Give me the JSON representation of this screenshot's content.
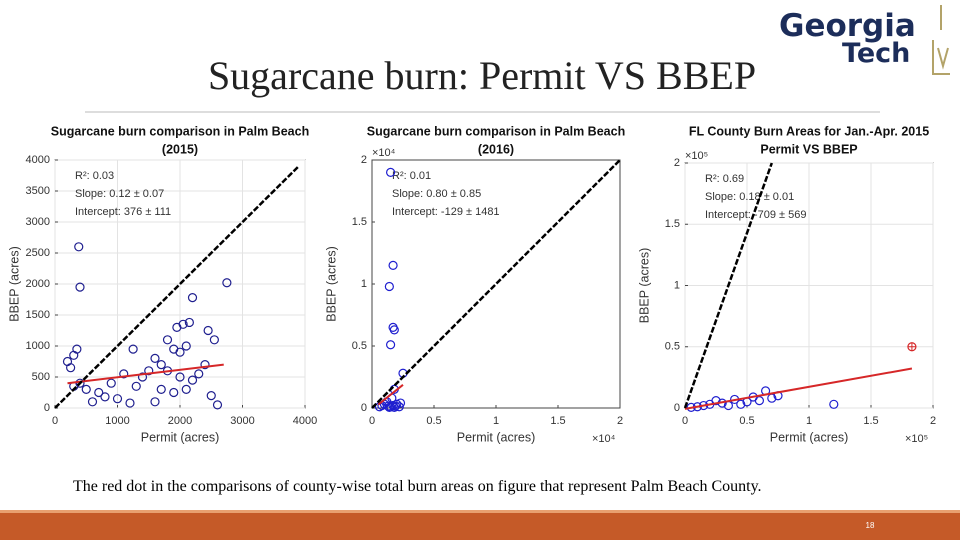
{
  "slide": {
    "title": "Sugarcane burn: Permit VS BBEP",
    "logo": [
      "Georgia",
      "Tech"
    ],
    "caption": "The red dot in the comparisons of county-wise total burn areas on figure that represent Palm Beach County.",
    "page_number": "18"
  },
  "chart_data": [
    {
      "type": "scatter",
      "title": "Sugarcane burn comparison in Palm Beach",
      "subtitle": "(2015)",
      "xlabel": "Permit (acres)",
      "ylabel": "BBEP (acres)",
      "xlim": [
        0,
        4000
      ],
      "ylim": [
        0,
        4000
      ],
      "xticks": [
        0,
        1000,
        2000,
        3000,
        4000
      ],
      "yticks": [
        0,
        500,
        1000,
        1500,
        2000,
        2500,
        3000,
        3500,
        4000
      ],
      "grid": true,
      "annotations": [
        "R²: 0.03",
        "Slope: 0.12 ± 0.07",
        "Intercept:  376 ± 111"
      ],
      "series": [
        {
          "mode": "markers",
          "color": "#1f1f8f",
          "marker": "circle",
          "x": [
            380,
            400,
            2200,
            2750,
            2050,
            2150,
            1950,
            2450,
            2550,
            1800,
            2100,
            1900,
            2000,
            350,
            300,
            200,
            250,
            1250,
            1600,
            1700,
            2400,
            2300,
            1500,
            1400,
            1100,
            900,
            1300,
            1700,
            1900,
            2100,
            2500,
            1000,
            800,
            600,
            500,
            400,
            300,
            2600,
            1600,
            1200,
            700,
            2000,
            2200,
            1800
          ],
          "values": [
            2600,
            1950,
            1780,
            2020,
            1350,
            1380,
            1300,
            1250,
            1100,
            1100,
            1000,
            950,
            900,
            950,
            850,
            750,
            650,
            950,
            800,
            700,
            700,
            550,
            600,
            500,
            550,
            400,
            350,
            300,
            250,
            300,
            200,
            150,
            180,
            100,
            300,
            400,
            350,
            50,
            100,
            80,
            250,
            500,
            450,
            600
          ]
        },
        {
          "mode": "line",
          "color": "#d62728",
          "x": [
            200,
            2700
          ],
          "values": [
            400,
            700
          ]
        },
        {
          "mode": "line",
          "color": "#000000",
          "style": "dashed",
          "x": [
            0,
            3900
          ],
          "values": [
            0,
            3900
          ]
        }
      ]
    },
    {
      "type": "scatter",
      "title": "Sugarcane burn comparison in Palm Beach",
      "subtitle": "(2016)",
      "xlabel": "Permit (acres)",
      "ylabel": "BBEP (acres)",
      "x_scale_label": "×10⁴",
      "y_scale_label": "×10⁴",
      "xlim": [
        0,
        20000
      ],
      "ylim": [
        0,
        20000
      ],
      "xticks": [
        {
          "value": 0,
          "label": "0"
        },
        {
          "value": 5000,
          "label": "0.5"
        },
        {
          "value": 10000,
          "label": "1"
        },
        {
          "value": 15000,
          "label": "1.5"
        },
        {
          "value": 20000,
          "label": "2"
        }
      ],
      "yticks": [
        {
          "value": 0,
          "label": "0"
        },
        {
          "value": 5000,
          "label": "0.5"
        },
        {
          "value": 10000,
          "label": "1"
        },
        {
          "value": 15000,
          "label": "1.5"
        },
        {
          "value": 20000,
          "label": "2"
        }
      ],
      "grid": false,
      "annotations": [
        "R²: 0.01",
        "Slope: 0.80 ± 0.85",
        "Intercept: -129 ± 1481"
      ],
      "series": [
        {
          "mode": "markers",
          "color": "#1f1fcf",
          "marker": "circle",
          "x": [
            1500,
            1700,
            1400,
            1700,
            1800,
            1500,
            2500,
            1800,
            1600,
            1200,
            1000,
            800,
            1500,
            1700,
            1900,
            2000,
            2200,
            1400,
            600,
            2300,
            1300,
            1800
          ],
          "values": [
            19000,
            11500,
            9800,
            6500,
            6300,
            5100,
            2800,
            1500,
            800,
            500,
            300,
            200,
            100,
            200,
            150,
            300,
            100,
            50,
            100,
            400,
            150,
            50
          ]
        },
        {
          "mode": "line",
          "color": "#d62728",
          "x": [
            500,
            2500
          ],
          "values": [
            271,
            1871
          ]
        },
        {
          "mode": "line",
          "color": "#000000",
          "style": "dashed",
          "x": [
            0,
            20000
          ],
          "values": [
            0,
            20000
          ]
        }
      ]
    },
    {
      "type": "scatter",
      "title": "FL County Burn Areas for Jan.-Apr. 2015",
      "subtitle": "Permit VS BBEP",
      "xlabel": "Permit (acres)",
      "ylabel": "BBEP (acres)",
      "x_scale_label": "×10⁵",
      "y_scale_label": "×10⁵",
      "xlim": [
        0,
        200000
      ],
      "ylim": [
        0,
        200000
      ],
      "xticks": [
        {
          "value": 0,
          "label": "0"
        },
        {
          "value": 50000,
          "label": "0.5"
        },
        {
          "value": 100000,
          "label": "1"
        },
        {
          "value": 150000,
          "label": "1.5"
        },
        {
          "value": 200000,
          "label": "2"
        }
      ],
      "yticks": [
        {
          "value": 0,
          "label": "0"
        },
        {
          "value": 50000,
          "label": "0.5"
        },
        {
          "value": 100000,
          "label": "1"
        },
        {
          "value": 150000,
          "label": "1.5"
        },
        {
          "value": 200000,
          "label": "2"
        }
      ],
      "grid": true,
      "annotations": [
        "R²: 0.69",
        "Slope: 0.18 ± 0.01",
        "Intercept: -709 ± 569"
      ],
      "series": [
        {
          "mode": "markers",
          "color": "#1f1fcf",
          "marker": "circle",
          "x": [
            120000,
            75000,
            65000,
            70000,
            60000,
            50000,
            45000,
            40000,
            30000,
            20000,
            15000,
            10000,
            5000,
            25000,
            35000,
            55000
          ],
          "values": [
            3000,
            10000,
            14000,
            8000,
            6000,
            5000,
            3000,
            7000,
            4000,
            3000,
            2000,
            1000,
            500,
            6000,
            2000,
            9000
          ]
        },
        {
          "mode": "markers",
          "color": "#d62728",
          "marker": "circle-plus",
          "x": [
            183000
          ],
          "values": [
            50000
          ]
        },
        {
          "mode": "line",
          "color": "#d62728",
          "x": [
            0,
            183000
          ],
          "values": [
            -709,
            32231
          ]
        },
        {
          "mode": "line",
          "color": "#000000",
          "style": "dashed",
          "x": [
            0,
            70000
          ],
          "values": [
            0,
            200000
          ]
        }
      ]
    }
  ]
}
